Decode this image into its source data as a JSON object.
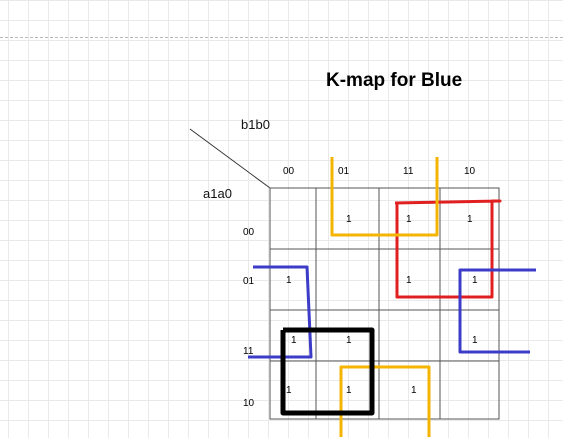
{
  "title": "K-map for Blue",
  "labels": {
    "columns_var": "b1b0",
    "rows_var": "a1a0"
  },
  "columns": [
    "00",
    "01",
    "11",
    "10"
  ],
  "rows": [
    "00",
    "01",
    "11",
    "10"
  ],
  "cells": [
    [
      "",
      "1",
      "1",
      "1"
    ],
    [
      "1",
      "",
      "1",
      "1"
    ],
    [
      "1",
      "1",
      "",
      "1"
    ],
    [
      "1",
      "1",
      "1",
      ""
    ]
  ],
  "colors": {
    "grid": "#555555",
    "red_group": "#e02020",
    "yellow_group": "#f5b400",
    "blue_group": "#3c3cc8",
    "black_group": "#000000"
  }
}
